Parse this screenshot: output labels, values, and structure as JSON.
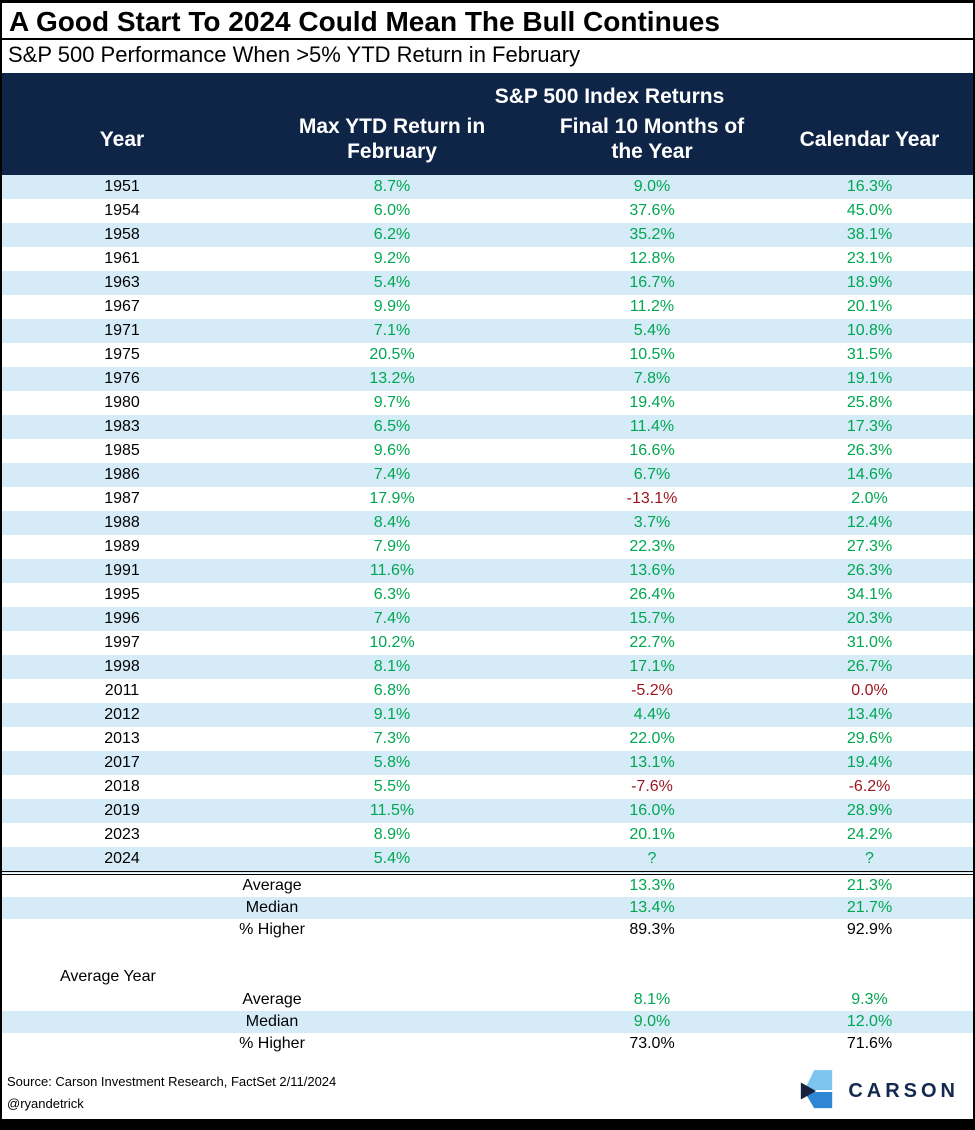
{
  "chart_data": {
    "type": "table",
    "title": "A Good Start To 2024 Could Mean The Bull Continues",
    "subtitle": "S&P 500 Performance When >5% YTD Return in February",
    "group_header": "S&P 500 Index Returns",
    "columns": [
      "Year",
      "Max YTD Return in\nFebruary",
      "Final 10 Months of\nthe Year",
      "Calendar Year"
    ],
    "rows": [
      {
        "year": "1951",
        "max_ytd": "8.7%",
        "final_10mo": "9.0%",
        "calendar_year": "16.3%",
        "red": []
      },
      {
        "year": "1954",
        "max_ytd": "6.0%",
        "final_10mo": "37.6%",
        "calendar_year": "45.0%",
        "red": []
      },
      {
        "year": "1958",
        "max_ytd": "6.2%",
        "final_10mo": "35.2%",
        "calendar_year": "38.1%",
        "red": []
      },
      {
        "year": "1961",
        "max_ytd": "9.2%",
        "final_10mo": "12.8%",
        "calendar_year": "23.1%",
        "red": []
      },
      {
        "year": "1963",
        "max_ytd": "5.4%",
        "final_10mo": "16.7%",
        "calendar_year": "18.9%",
        "red": []
      },
      {
        "year": "1967",
        "max_ytd": "9.9%",
        "final_10mo": "11.2%",
        "calendar_year": "20.1%",
        "red": []
      },
      {
        "year": "1971",
        "max_ytd": "7.1%",
        "final_10mo": "5.4%",
        "calendar_year": "10.8%",
        "red": []
      },
      {
        "year": "1975",
        "max_ytd": "20.5%",
        "final_10mo": "10.5%",
        "calendar_year": "31.5%",
        "red": []
      },
      {
        "year": "1976",
        "max_ytd": "13.2%",
        "final_10mo": "7.8%",
        "calendar_year": "19.1%",
        "red": []
      },
      {
        "year": "1980",
        "max_ytd": "9.7%",
        "final_10mo": "19.4%",
        "calendar_year": "25.8%",
        "red": []
      },
      {
        "year": "1983",
        "max_ytd": "6.5%",
        "final_10mo": "11.4%",
        "calendar_year": "17.3%",
        "red": []
      },
      {
        "year": "1985",
        "max_ytd": "9.6%",
        "final_10mo": "16.6%",
        "calendar_year": "26.3%",
        "red": []
      },
      {
        "year": "1986",
        "max_ytd": "7.4%",
        "final_10mo": "6.7%",
        "calendar_year": "14.6%",
        "red": []
      },
      {
        "year": "1987",
        "max_ytd": "17.9%",
        "final_10mo": "-13.1%",
        "calendar_year": "2.0%",
        "red": [
          "final_10mo"
        ]
      },
      {
        "year": "1988",
        "max_ytd": "8.4%",
        "final_10mo": "3.7%",
        "calendar_year": "12.4%",
        "red": []
      },
      {
        "year": "1989",
        "max_ytd": "7.9%",
        "final_10mo": "22.3%",
        "calendar_year": "27.3%",
        "red": []
      },
      {
        "year": "1991",
        "max_ytd": "11.6%",
        "final_10mo": "13.6%",
        "calendar_year": "26.3%",
        "red": []
      },
      {
        "year": "1995",
        "max_ytd": "6.3%",
        "final_10mo": "26.4%",
        "calendar_year": "34.1%",
        "red": []
      },
      {
        "year": "1996",
        "max_ytd": "7.4%",
        "final_10mo": "15.7%",
        "calendar_year": "20.3%",
        "red": []
      },
      {
        "year": "1997",
        "max_ytd": "10.2%",
        "final_10mo": "22.7%",
        "calendar_year": "31.0%",
        "red": []
      },
      {
        "year": "1998",
        "max_ytd": "8.1%",
        "final_10mo": "17.1%",
        "calendar_year": "26.7%",
        "red": []
      },
      {
        "year": "2011",
        "max_ytd": "6.8%",
        "final_10mo": "-5.2%",
        "calendar_year": "0.0%",
        "red": [
          "final_10mo",
          "calendar_year"
        ]
      },
      {
        "year": "2012",
        "max_ytd": "9.1%",
        "final_10mo": "4.4%",
        "calendar_year": "13.4%",
        "red": []
      },
      {
        "year": "2013",
        "max_ytd": "7.3%",
        "final_10mo": "22.0%",
        "calendar_year": "29.6%",
        "red": []
      },
      {
        "year": "2017",
        "max_ytd": "5.8%",
        "final_10mo": "13.1%",
        "calendar_year": "19.4%",
        "red": []
      },
      {
        "year": "2018",
        "max_ytd": "5.5%",
        "final_10mo": "-7.6%",
        "calendar_year": "-6.2%",
        "red": [
          "final_10mo",
          "calendar_year"
        ]
      },
      {
        "year": "2019",
        "max_ytd": "11.5%",
        "final_10mo": "16.0%",
        "calendar_year": "28.9%",
        "red": []
      },
      {
        "year": "2023",
        "max_ytd": "8.9%",
        "final_10mo": "20.1%",
        "calendar_year": "24.2%",
        "red": []
      },
      {
        "year": "2024",
        "max_ytd": "5.4%",
        "final_10mo": "?",
        "calendar_year": "?",
        "red": []
      }
    ],
    "summary": {
      "rows": [
        {
          "label": "Average",
          "final_10mo": "13.3%",
          "calendar_year": "21.3%",
          "color": "green"
        },
        {
          "label": "Median",
          "final_10mo": "13.4%",
          "calendar_year": "21.7%",
          "color": "green"
        },
        {
          "label": "% Higher",
          "final_10mo": "89.3%",
          "calendar_year": "92.9%",
          "color": "black"
        }
      ]
    },
    "average_year": {
      "label": "Average Year",
      "rows": [
        {
          "label": "Average",
          "final_10mo": "8.1%",
          "calendar_year": "9.3%",
          "color": "green"
        },
        {
          "label": "Median",
          "final_10mo": "9.0%",
          "calendar_year": "12.0%",
          "color": "green"
        },
        {
          "label": "% Higher",
          "final_10mo": "73.0%",
          "calendar_year": "71.6%",
          "color": "black"
        }
      ]
    },
    "layout_hints": {
      "stripe_first_data_row": true,
      "legend": "none",
      "grid": "row-stripes"
    }
  },
  "footer": {
    "source": "Source: Carson Investment Research, FactSet 2/11/2024",
    "handle": "@ryandetrick",
    "logo_text": "CARSON"
  },
  "colors": {
    "header_navy": "#0f2548",
    "stripe_blue": "#d6ebf8",
    "positive_green": "#00a651",
    "negative_red": "#9b141e",
    "logo_light_blue": "#7dc5ee",
    "logo_mid_blue": "#2d87d3",
    "logo_navy": "#16233f",
    "logo_text_navy": "#14294e"
  }
}
